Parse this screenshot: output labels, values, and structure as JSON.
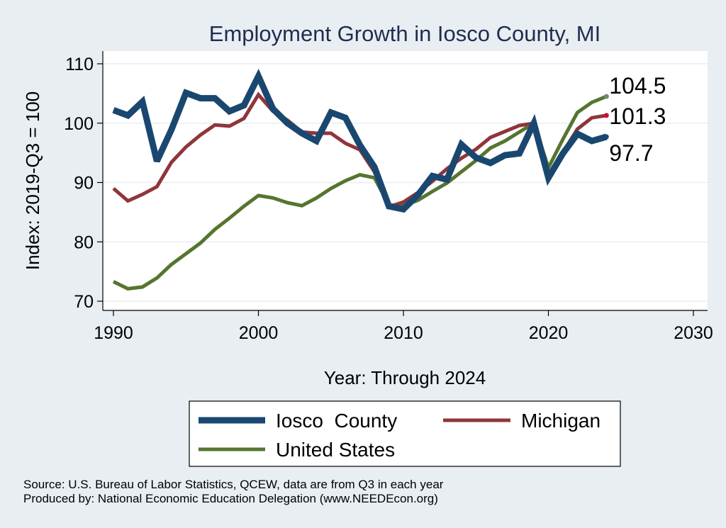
{
  "chart_data": {
    "type": "line",
    "title": "Employment Growth in Iosco County, MI",
    "xlabel": "Year: Through 2024",
    "ylabel": "Index: 2019-Q3 = 100",
    "xlim": [
      1990,
      2030
    ],
    "ylim": [
      70,
      110
    ],
    "x_ticks": [
      "1990",
      "2000",
      "2010",
      "2020",
      "2030"
    ],
    "y_ticks": [
      "70",
      "80",
      "90",
      "100",
      "110"
    ],
    "grid": true,
    "legend_position": "bottom",
    "x": [
      1990,
      1991,
      1992,
      1993,
      1994,
      1995,
      1996,
      1997,
      1998,
      1999,
      2000,
      2001,
      2002,
      2003,
      2004,
      2005,
      2006,
      2007,
      2008,
      2009,
      2010,
      2011,
      2012,
      2013,
      2014,
      2015,
      2016,
      2017,
      2018,
      2019,
      2020,
      2021,
      2022,
      2023,
      2024
    ],
    "series": [
      {
        "name": "Iosco  County",
        "color": "#1a476f",
        "values": [
          102.2,
          101.3,
          103.6,
          93.6,
          98.9,
          105.1,
          104.2,
          104.2,
          102.0,
          103.0,
          107.9,
          102.4,
          100.0,
          98.3,
          97.0,
          101.8,
          100.9,
          96.3,
          92.6,
          86.0,
          85.5,
          87.9,
          91.1,
          90.5,
          96.4,
          94.2,
          93.3,
          94.6,
          94.9,
          100.0,
          90.8,
          94.9,
          98.2,
          97.0,
          97.7
        ]
      },
      {
        "name": "Michigan",
        "color": "#90353b",
        "values": [
          89.0,
          86.9,
          88.0,
          89.3,
          93.4,
          96.0,
          98.0,
          99.7,
          99.5,
          100.8,
          104.8,
          102.0,
          100.5,
          98.5,
          98.3,
          98.3,
          96.6,
          95.5,
          91.8,
          85.9,
          86.7,
          88.3,
          90.2,
          92.3,
          94.1,
          95.6,
          97.6,
          98.6,
          99.6,
          100.0,
          91.2,
          95.1,
          99.0,
          100.9,
          101.3
        ]
      },
      {
        "name": "United States",
        "color": "#55752f",
        "values": [
          73.3,
          72.1,
          72.4,
          73.9,
          76.2,
          78.0,
          79.8,
          82.1,
          84.0,
          86.0,
          87.8,
          87.4,
          86.6,
          86.1,
          87.4,
          89.0,
          90.3,
          91.3,
          90.8,
          86.2,
          86.1,
          87.0,
          88.5,
          89.9,
          91.8,
          93.7,
          95.8,
          97.0,
          98.5,
          100.0,
          92.5,
          97.3,
          101.8,
          103.5,
          104.5
        ]
      }
    ],
    "end_labels": [
      {
        "series": "United States",
        "value": 104.5,
        "text": "104.5",
        "marker_color": "#6a8f6e"
      },
      {
        "series": "Michigan",
        "value": 101.3,
        "text": "101.3",
        "marker_color": "#c0123c"
      },
      {
        "series": "Iosco  County",
        "value": 97.7,
        "text": "97.7",
        "marker_color": "#1a476f"
      }
    ]
  },
  "notes": {
    "source": "Source: U.S. Bureau of Labor Statistics, QCEW, data are from Q3 in each year",
    "produced": "Produced by: National Economic Education Delegation (www.NEEDEcon.org)"
  }
}
